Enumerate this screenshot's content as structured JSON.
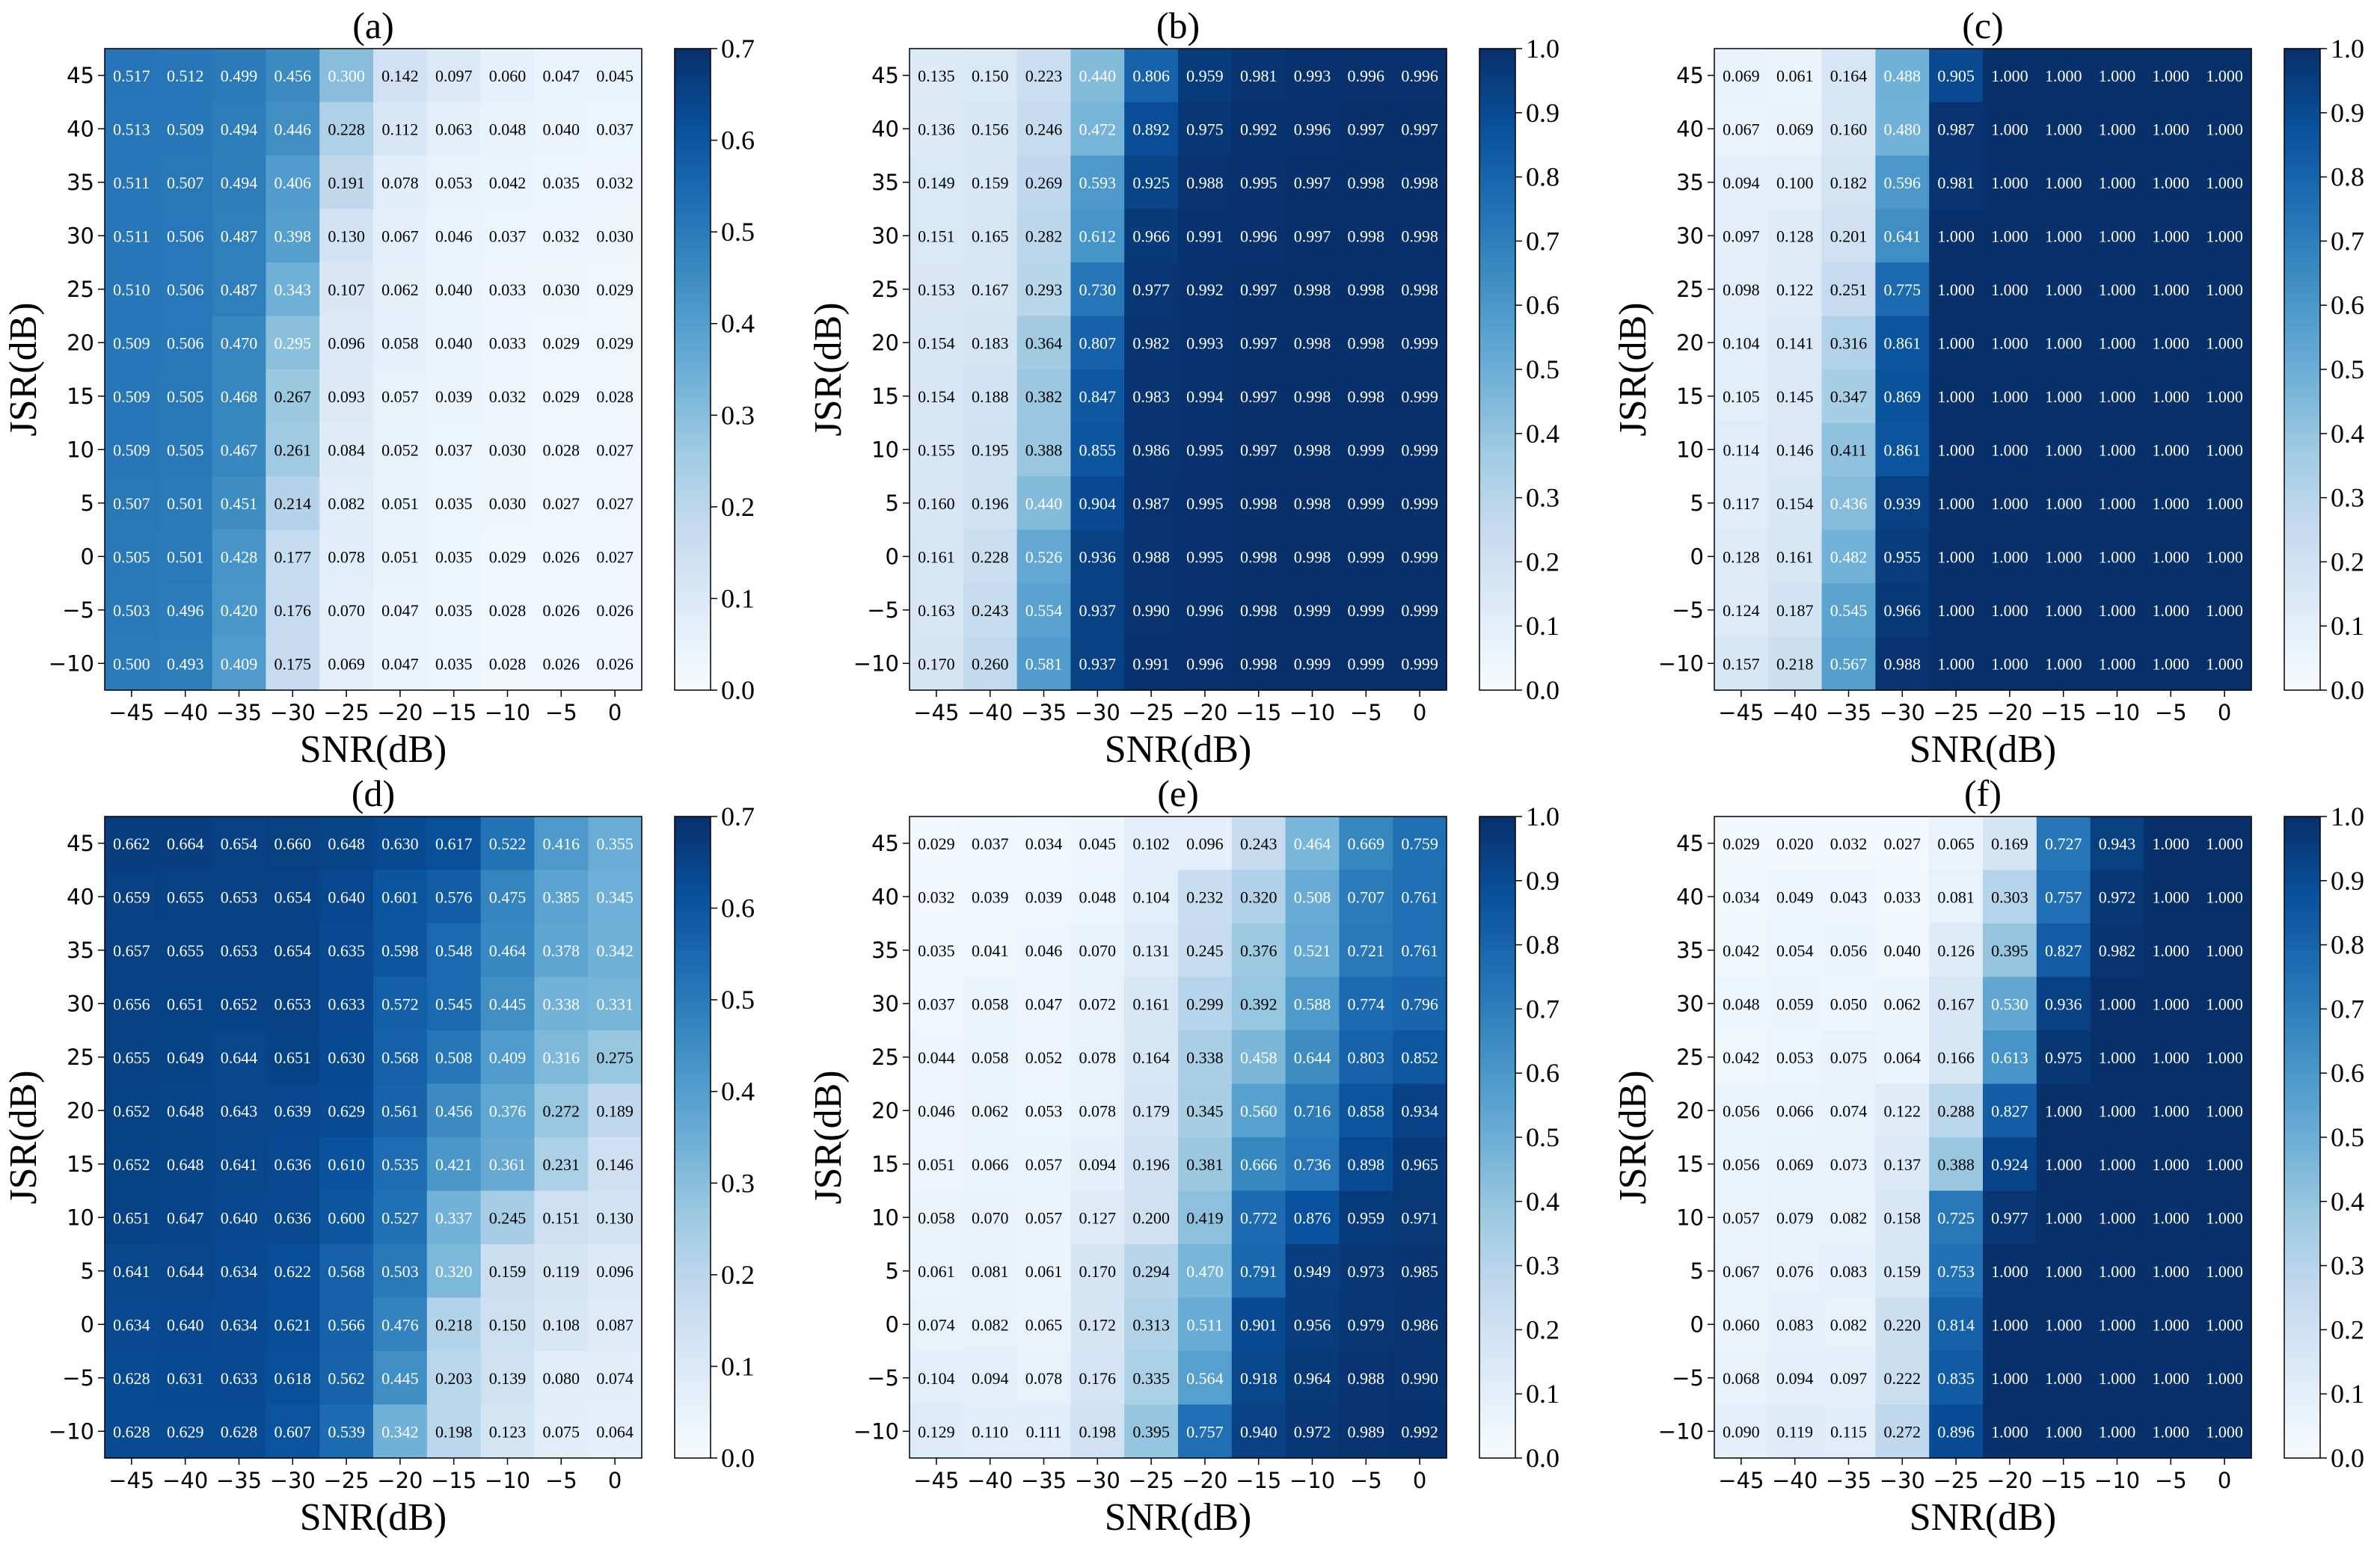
{
  "chart_data": [
    {
      "type": "heatmap",
      "title": "(a)",
      "xlabel": "SNR(dB)",
      "ylabel": "JSR(dB)",
      "x": [
        "−45",
        "−40",
        "−35",
        "−30",
        "−25",
        "−20",
        "−15",
        "−10",
        "−5",
        "0"
      ],
      "y": [
        "45",
        "40",
        "35",
        "30",
        "25",
        "20",
        "15",
        "10",
        "5",
        "0",
        "−5",
        "−10"
      ],
      "values": [
        [
          0.517,
          0.512,
          0.499,
          0.456,
          0.3,
          0.142,
          0.097,
          0.06,
          0.047,
          0.045
        ],
        [
          0.513,
          0.509,
          0.494,
          0.446,
          0.228,
          0.112,
          0.063,
          0.048,
          0.04,
          0.037
        ],
        [
          0.511,
          0.507,
          0.494,
          0.406,
          0.191,
          0.078,
          0.053,
          0.042,
          0.035,
          0.032
        ],
        [
          0.511,
          0.506,
          0.487,
          0.398,
          0.13,
          0.067,
          0.046,
          0.037,
          0.032,
          0.03
        ],
        [
          0.51,
          0.506,
          0.487,
          0.343,
          0.107,
          0.062,
          0.04,
          0.033,
          0.03,
          0.029
        ],
        [
          0.509,
          0.506,
          0.47,
          0.295,
          0.096,
          0.058,
          0.04,
          0.033,
          0.029,
          0.029
        ],
        [
          0.509,
          0.505,
          0.468,
          0.267,
          0.093,
          0.057,
          0.039,
          0.032,
          0.029,
          0.028
        ],
        [
          0.509,
          0.505,
          0.467,
          0.261,
          0.084,
          0.052,
          0.037,
          0.03,
          0.028,
          0.027
        ],
        [
          0.507,
          0.501,
          0.451,
          0.214,
          0.082,
          0.051,
          0.035,
          0.03,
          0.027,
          0.027
        ],
        [
          0.505,
          0.501,
          0.428,
          0.177,
          0.078,
          0.051,
          0.035,
          0.029,
          0.026,
          0.027
        ],
        [
          0.503,
          0.496,
          0.42,
          0.176,
          0.07,
          0.047,
          0.035,
          0.028,
          0.026,
          0.026
        ],
        [
          0.5,
          0.493,
          0.409,
          0.175,
          0.069,
          0.047,
          0.035,
          0.028,
          0.026,
          0.026
        ]
      ],
      "vmin": 0.0,
      "vmax": 0.7,
      "colorbar_ticks": [
        "0.0",
        "0.1",
        "0.2",
        "0.3",
        "0.4",
        "0.5",
        "0.6",
        "0.7"
      ],
      "colormap": "Blues"
    },
    {
      "type": "heatmap",
      "title": "(b)",
      "xlabel": "SNR(dB)",
      "ylabel": "JSR(dB)",
      "x": [
        "−45",
        "−40",
        "−35",
        "−30",
        "−25",
        "−20",
        "−15",
        "−10",
        "−5",
        "0"
      ],
      "y": [
        "45",
        "40",
        "35",
        "30",
        "25",
        "20",
        "15",
        "10",
        "5",
        "0",
        "−5",
        "−10"
      ],
      "values": [
        [
          0.135,
          0.15,
          0.223,
          0.44,
          0.806,
          0.959,
          0.981,
          0.993,
          0.996,
          0.996
        ],
        [
          0.136,
          0.156,
          0.246,
          0.472,
          0.892,
          0.975,
          0.992,
          0.996,
          0.997,
          0.997
        ],
        [
          0.149,
          0.159,
          0.269,
          0.593,
          0.925,
          0.988,
          0.995,
          0.997,
          0.998,
          0.998
        ],
        [
          0.151,
          0.165,
          0.282,
          0.612,
          0.966,
          0.991,
          0.996,
          0.997,
          0.998,
          0.998
        ],
        [
          0.153,
          0.167,
          0.293,
          0.73,
          0.977,
          0.992,
          0.997,
          0.998,
          0.998,
          0.998
        ],
        [
          0.154,
          0.183,
          0.364,
          0.807,
          0.982,
          0.993,
          0.997,
          0.998,
          0.998,
          0.999
        ],
        [
          0.154,
          0.188,
          0.382,
          0.847,
          0.983,
          0.994,
          0.997,
          0.998,
          0.998,
          0.999
        ],
        [
          0.155,
          0.195,
          0.388,
          0.855,
          0.986,
          0.995,
          0.997,
          0.998,
          0.999,
          0.999
        ],
        [
          0.16,
          0.196,
          0.44,
          0.904,
          0.987,
          0.995,
          0.998,
          0.998,
          0.999,
          0.999
        ],
        [
          0.161,
          0.228,
          0.526,
          0.936,
          0.988,
          0.995,
          0.998,
          0.998,
          0.999,
          0.999
        ],
        [
          0.163,
          0.243,
          0.554,
          0.937,
          0.99,
          0.996,
          0.998,
          0.999,
          0.999,
          0.999
        ],
        [
          0.17,
          0.26,
          0.581,
          0.937,
          0.991,
          0.996,
          0.998,
          0.999,
          0.999,
          0.999
        ]
      ],
      "vmin": 0.0,
      "vmax": 1.0,
      "colorbar_ticks": [
        "0.0",
        "0.1",
        "0.2",
        "0.3",
        "0.4",
        "0.5",
        "0.6",
        "0.7",
        "0.8",
        "0.9",
        "1.0"
      ],
      "colormap": "Blues"
    },
    {
      "type": "heatmap",
      "title": "(c)",
      "xlabel": "SNR(dB)",
      "ylabel": "JSR(dB)",
      "x": [
        "−45",
        "−40",
        "−35",
        "−30",
        "−25",
        "−20",
        "−15",
        "−10",
        "−5",
        "0"
      ],
      "y": [
        "45",
        "40",
        "35",
        "30",
        "25",
        "20",
        "15",
        "10",
        "5",
        "0",
        "−5",
        "−10"
      ],
      "values": [
        [
          0.069,
          0.061,
          0.164,
          0.488,
          0.905,
          1.0,
          1.0,
          1.0,
          1.0,
          1.0
        ],
        [
          0.067,
          0.069,
          0.16,
          0.48,
          0.987,
          1.0,
          1.0,
          1.0,
          1.0,
          1.0
        ],
        [
          0.094,
          0.1,
          0.182,
          0.596,
          0.981,
          1.0,
          1.0,
          1.0,
          1.0,
          1.0
        ],
        [
          0.097,
          0.128,
          0.201,
          0.641,
          1.0,
          1.0,
          1.0,
          1.0,
          1.0,
          1.0
        ],
        [
          0.098,
          0.122,
          0.251,
          0.775,
          1.0,
          1.0,
          1.0,
          1.0,
          1.0,
          1.0
        ],
        [
          0.104,
          0.141,
          0.316,
          0.861,
          1.0,
          1.0,
          1.0,
          1.0,
          1.0,
          1.0
        ],
        [
          0.105,
          0.145,
          0.347,
          0.869,
          1.0,
          1.0,
          1.0,
          1.0,
          1.0,
          1.0
        ],
        [
          0.114,
          0.146,
          0.411,
          0.861,
          1.0,
          1.0,
          1.0,
          1.0,
          1.0,
          1.0
        ],
        [
          0.117,
          0.154,
          0.436,
          0.939,
          1.0,
          1.0,
          1.0,
          1.0,
          1.0,
          1.0
        ],
        [
          0.128,
          0.161,
          0.482,
          0.955,
          1.0,
          1.0,
          1.0,
          1.0,
          1.0,
          1.0
        ],
        [
          0.124,
          0.187,
          0.545,
          0.966,
          1.0,
          1.0,
          1.0,
          1.0,
          1.0,
          1.0
        ],
        [
          0.157,
          0.218,
          0.567,
          0.988,
          1.0,
          1.0,
          1.0,
          1.0,
          1.0,
          1.0
        ]
      ],
      "vmin": 0.0,
      "vmax": 1.0,
      "colorbar_ticks": [
        "0.0",
        "0.1",
        "0.2",
        "0.3",
        "0.4",
        "0.5",
        "0.6",
        "0.7",
        "0.8",
        "0.9",
        "1.0"
      ],
      "colormap": "Blues"
    },
    {
      "type": "heatmap",
      "title": "(d)",
      "xlabel": "SNR(dB)",
      "ylabel": "JSR(dB)",
      "x": [
        "−45",
        "−40",
        "−35",
        "−30",
        "−25",
        "−20",
        "−15",
        "−10",
        "−5",
        "0"
      ],
      "y": [
        "45",
        "40",
        "35",
        "30",
        "25",
        "20",
        "15",
        "10",
        "5",
        "0",
        "−5",
        "−10"
      ],
      "values": [
        [
          0.662,
          0.664,
          0.654,
          0.66,
          0.648,
          0.63,
          0.617,
          0.522,
          0.416,
          0.355
        ],
        [
          0.659,
          0.655,
          0.653,
          0.654,
          0.64,
          0.601,
          0.576,
          0.475,
          0.385,
          0.345
        ],
        [
          0.657,
          0.655,
          0.653,
          0.654,
          0.635,
          0.598,
          0.548,
          0.464,
          0.378,
          0.342
        ],
        [
          0.656,
          0.651,
          0.652,
          0.653,
          0.633,
          0.572,
          0.545,
          0.445,
          0.338,
          0.331
        ],
        [
          0.655,
          0.649,
          0.644,
          0.651,
          0.63,
          0.568,
          0.508,
          0.409,
          0.316,
          0.275
        ],
        [
          0.652,
          0.648,
          0.643,
          0.639,
          0.629,
          0.561,
          0.456,
          0.376,
          0.272,
          0.189
        ],
        [
          0.652,
          0.648,
          0.641,
          0.636,
          0.61,
          0.535,
          0.421,
          0.361,
          0.231,
          0.146
        ],
        [
          0.651,
          0.647,
          0.64,
          0.636,
          0.6,
          0.527,
          0.337,
          0.245,
          0.151,
          0.13
        ],
        [
          0.641,
          0.644,
          0.634,
          0.622,
          0.568,
          0.503,
          0.32,
          0.159,
          0.119,
          0.096
        ],
        [
          0.634,
          0.64,
          0.634,
          0.621,
          0.566,
          0.476,
          0.218,
          0.15,
          0.108,
          0.087
        ],
        [
          0.628,
          0.631,
          0.633,
          0.618,
          0.562,
          0.445,
          0.203,
          0.139,
          0.08,
          0.074
        ],
        [
          0.628,
          0.629,
          0.628,
          0.607,
          0.539,
          0.342,
          0.198,
          0.123,
          0.075,
          0.064
        ]
      ],
      "vmin": 0.0,
      "vmax": 0.7,
      "colorbar_ticks": [
        "0.0",
        "0.1",
        "0.2",
        "0.3",
        "0.4",
        "0.5",
        "0.6",
        "0.7"
      ],
      "colormap": "Blues"
    },
    {
      "type": "heatmap",
      "title": "(e)",
      "xlabel": "SNR(dB)",
      "ylabel": "JSR(dB)",
      "x": [
        "−45",
        "−40",
        "−35",
        "−30",
        "−25",
        "−20",
        "−15",
        "−10",
        "−5",
        "0"
      ],
      "y": [
        "45",
        "40",
        "35",
        "30",
        "25",
        "20",
        "15",
        "10",
        "5",
        "0",
        "−5",
        "−10"
      ],
      "values": [
        [
          0.029,
          0.037,
          0.034,
          0.045,
          0.102,
          0.096,
          0.243,
          0.464,
          0.669,
          0.759
        ],
        [
          0.032,
          0.039,
          0.039,
          0.048,
          0.104,
          0.232,
          0.32,
          0.508,
          0.707,
          0.761
        ],
        [
          0.035,
          0.041,
          0.046,
          0.07,
          0.131,
          0.245,
          0.376,
          0.521,
          0.721,
          0.761
        ],
        [
          0.037,
          0.058,
          0.047,
          0.072,
          0.161,
          0.299,
          0.392,
          0.588,
          0.774,
          0.796
        ],
        [
          0.044,
          0.058,
          0.052,
          0.078,
          0.164,
          0.338,
          0.458,
          0.644,
          0.803,
          0.852
        ],
        [
          0.046,
          0.062,
          0.053,
          0.078,
          0.179,
          0.345,
          0.56,
          0.716,
          0.858,
          0.934
        ],
        [
          0.051,
          0.066,
          0.057,
          0.094,
          0.196,
          0.381,
          0.666,
          0.736,
          0.898,
          0.965
        ],
        [
          0.058,
          0.07,
          0.057,
          0.127,
          0.2,
          0.419,
          0.772,
          0.876,
          0.959,
          0.971
        ],
        [
          0.061,
          0.081,
          0.061,
          0.17,
          0.294,
          0.47,
          0.791,
          0.949,
          0.973,
          0.985
        ],
        [
          0.074,
          0.082,
          0.065,
          0.172,
          0.313,
          0.511,
          0.901,
          0.956,
          0.979,
          0.986
        ],
        [
          0.104,
          0.094,
          0.078,
          0.176,
          0.335,
          0.564,
          0.918,
          0.964,
          0.988,
          0.99
        ],
        [
          0.129,
          0.11,
          0.111,
          0.198,
          0.395,
          0.757,
          0.94,
          0.972,
          0.989,
          0.992
        ]
      ],
      "vmin": 0.0,
      "vmax": 1.0,
      "colorbar_ticks": [
        "0.0",
        "0.1",
        "0.2",
        "0.3",
        "0.4",
        "0.5",
        "0.6",
        "0.7",
        "0.8",
        "0.9",
        "1.0"
      ],
      "colormap": "Blues"
    },
    {
      "type": "heatmap",
      "title": "(f)",
      "xlabel": "SNR(dB)",
      "ylabel": "JSR(dB)",
      "x": [
        "−45",
        "−40",
        "−35",
        "−30",
        "−25",
        "−20",
        "−15",
        "−10",
        "−5",
        "0"
      ],
      "y": [
        "45",
        "40",
        "35",
        "30",
        "25",
        "20",
        "15",
        "10",
        "5",
        "0",
        "−5",
        "−10"
      ],
      "values": [
        [
          0.029,
          0.02,
          0.032,
          0.027,
          0.065,
          0.169,
          0.727,
          0.943,
          1.0,
          1.0
        ],
        [
          0.034,
          0.049,
          0.043,
          0.033,
          0.081,
          0.303,
          0.757,
          0.972,
          1.0,
          1.0
        ],
        [
          0.042,
          0.054,
          0.056,
          0.04,
          0.126,
          0.395,
          0.827,
          0.982,
          1.0,
          1.0
        ],
        [
          0.048,
          0.059,
          0.05,
          0.062,
          0.167,
          0.53,
          0.936,
          1.0,
          1.0,
          1.0
        ],
        [
          0.042,
          0.053,
          0.075,
          0.064,
          0.166,
          0.613,
          0.975,
          1.0,
          1.0,
          1.0
        ],
        [
          0.056,
          0.066,
          0.074,
          0.122,
          0.288,
          0.827,
          1.0,
          1.0,
          1.0,
          1.0
        ],
        [
          0.056,
          0.069,
          0.073,
          0.137,
          0.388,
          0.924,
          1.0,
          1.0,
          1.0,
          1.0
        ],
        [
          0.057,
          0.079,
          0.082,
          0.158,
          0.725,
          0.977,
          1.0,
          1.0,
          1.0,
          1.0
        ],
        [
          0.067,
          0.076,
          0.083,
          0.159,
          0.753,
          1.0,
          1.0,
          1.0,
          1.0,
          1.0
        ],
        [
          0.06,
          0.083,
          0.082,
          0.22,
          0.814,
          1.0,
          1.0,
          1.0,
          1.0,
          1.0
        ],
        [
          0.068,
          0.094,
          0.097,
          0.222,
          0.835,
          1.0,
          1.0,
          1.0,
          1.0,
          1.0
        ],
        [
          0.09,
          0.119,
          0.115,
          0.272,
          0.896,
          1.0,
          1.0,
          1.0,
          1.0,
          1.0
        ]
      ],
      "vmin": 0.0,
      "vmax": 1.0,
      "colorbar_ticks": [
        "0.0",
        "0.1",
        "0.2",
        "0.3",
        "0.4",
        "0.5",
        "0.6",
        "0.7",
        "0.8",
        "0.9",
        "1.0"
      ],
      "colormap": "Blues"
    }
  ]
}
